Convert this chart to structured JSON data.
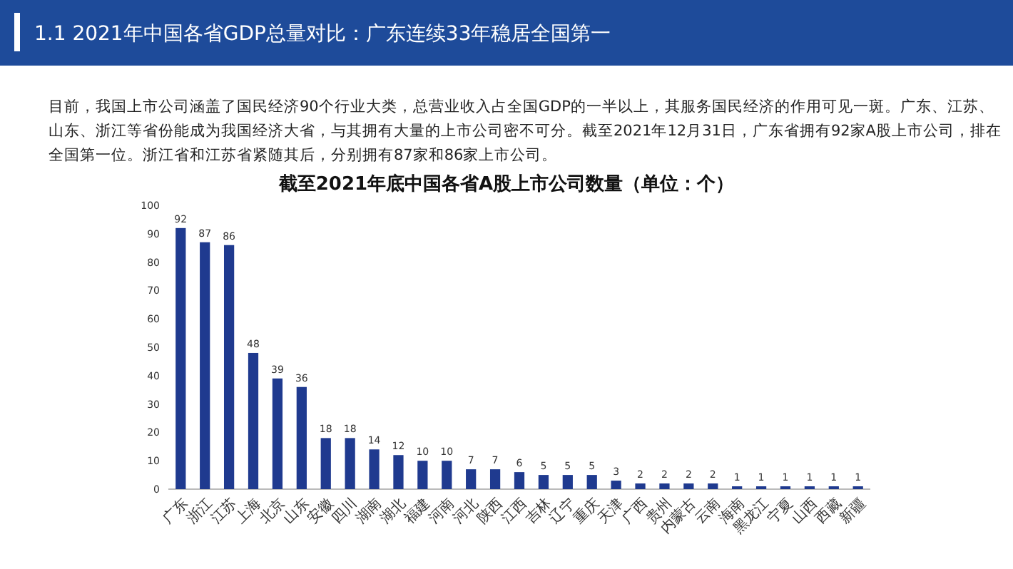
{
  "chart_data": {
    "type": "bar",
    "title": "截至2021年底中国各省A股上市公司数量（单位：个）",
    "annotations": [
      "1.1  2021年中国各省GDP总量对比：广东连续33年稳居全国第一",
      "目前，我国上市公司涵盖了国民经济90个行业大类，总营业收入占全国GDP的一半以上，其服务国民经济的作用可见一斑。广东、江苏、山东、浙江等省份能成为我国经济大省，与其拥有大量的上市公司密不可分。截至2021年12月31日，广东省拥有92家A股上市公司，排在全国第一位。浙江省和江苏省紧随其后，分别拥有87家和86家上市公司。"
    ],
    "categories": [
      "广东",
      "浙江",
      "江苏",
      "上海",
      "北京",
      "山东",
      "安徽",
      "四川",
      "湖南",
      "湖北",
      "福建",
      "河南",
      "河北",
      "陕西",
      "江西",
      "吉林",
      "辽宁",
      "重庆",
      "天津",
      "广西",
      "贵州",
      "内蒙古",
      "云南",
      "海南",
      "黑龙江",
      "宁夏",
      "山西",
      "西藏",
      "新疆"
    ],
    "values": [
      92,
      87,
      86,
      48,
      39,
      36,
      18,
      18,
      14,
      12,
      10,
      10,
      7,
      7,
      6,
      5,
      5,
      5,
      3,
      2,
      2,
      2,
      2,
      1,
      1,
      1,
      1,
      1,
      1
    ],
    "color": "#1f3a8f",
    "ylim": [
      0,
      100
    ],
    "yticks": [
      0,
      10,
      20,
      30,
      40,
      50,
      60,
      70,
      80,
      90,
      100
    ],
    "grid": false,
    "data_labels": true
  }
}
